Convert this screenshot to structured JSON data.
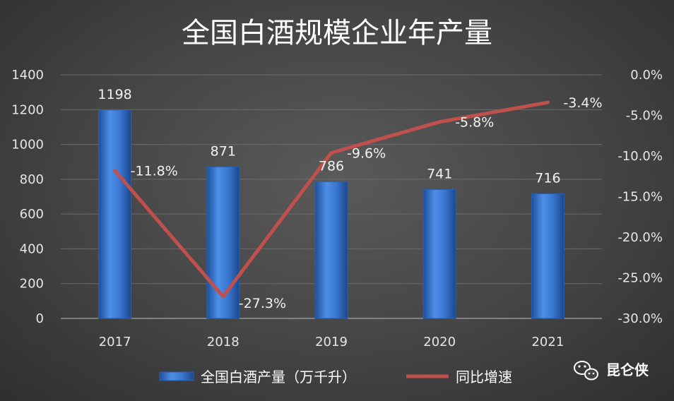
{
  "chart_data": {
    "type": "bar",
    "title": "全国白酒规模企业年产量",
    "categories": [
      "2017",
      "2018",
      "2019",
      "2020",
      "2021"
    ],
    "series": [
      {
        "name": "全国白酒产量（万千升）",
        "type": "bar",
        "axis": "left",
        "color": "#3f7fd6",
        "values": [
          1198,
          871,
          786,
          741,
          716
        ],
        "labels": [
          "1198",
          "871",
          "786",
          "741",
          "716"
        ]
      },
      {
        "name": "同比增速",
        "type": "line",
        "axis": "right",
        "color": "#c0504d",
        "values": [
          -11.8,
          -27.3,
          -9.6,
          -5.8,
          -3.4
        ],
        "labels": [
          "-11.8%",
          "-27.3%",
          "-9.6%",
          "-5.8%",
          "-3.4%"
        ]
      }
    ],
    "y_left": {
      "min": 0,
      "max": 1400,
      "ticks": [
        "0",
        "200",
        "400",
        "600",
        "800",
        "1000",
        "1200",
        "1400"
      ]
    },
    "y_right": {
      "min": -30,
      "max": 0,
      "ticks": [
        "-30.0%",
        "-25.0%",
        "-20.0%",
        "-15.0%",
        "-10.0%",
        "-5.0%",
        "0.0%"
      ]
    },
    "grid": true,
    "legend": "bottom"
  },
  "brand": {
    "icon": "wechat-icon",
    "name": "昆仑侠"
  }
}
